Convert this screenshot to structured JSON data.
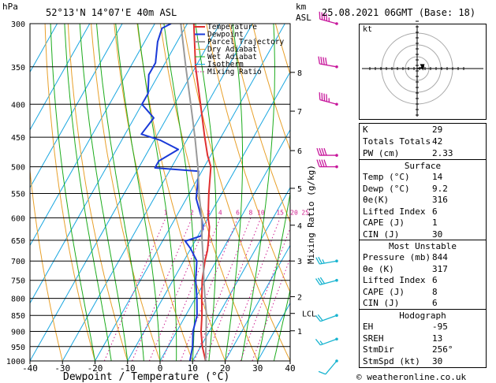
{
  "header": {
    "unit_left": "hPa",
    "location": "52°13'N  14°07'E  40m  ASL",
    "km_label": "km",
    "asl_label": "ASL",
    "datetime": "25.08.2021  06GMT  (Base: 18)",
    "footer": "© weatheronline.co.uk"
  },
  "legend": [
    "Temperature",
    "Dewpoint",
    "Parcel Trajectory",
    "Dry Adiabat",
    "Wet Adiabat",
    "Isotherm",
    "Mixing Ratio"
  ],
  "colors": {
    "temperature": "#e03030",
    "dewpoint": "#1a3ad8",
    "parcel": "#9a9a9a",
    "dry_adiabat": "#e8a02a",
    "wet_adiabat": "#1cac1c",
    "isotherm": "#18a6e0",
    "mixing_ratio": "#d02090",
    "wind_lower": "#18b4d0",
    "wind_upper": "#c8189c"
  },
  "chart_data": {
    "type": "line",
    "title": "",
    "xlabel": "Dewpoint / Temperature (°C)",
    "ylabel_right": "Mixing Ratio (g/kg)",
    "xlim": [
      -40,
      40
    ],
    "ylim": [
      1000,
      300
    ],
    "skew": "skew-T log-p",
    "x_ticks": [
      -40,
      -30,
      -20,
      -10,
      0,
      10,
      20,
      30,
      40
    ],
    "pressure_levels": [
      300,
      350,
      400,
      450,
      500,
      550,
      600,
      650,
      700,
      750,
      800,
      850,
      900,
      950,
      1000
    ],
    "km_ticks": [
      {
        "label": "8",
        "p": 357
      },
      {
        "label": "7",
        "p": 410
      },
      {
        "label": "6",
        "p": 472
      },
      {
        "label": "5",
        "p": 540
      },
      {
        "label": "4",
        "p": 616
      },
      {
        "label": "3",
        "p": 700
      },
      {
        "label": "2",
        "p": 795
      },
      {
        "label": "1",
        "p": 898
      },
      {
        "label": "LCL",
        "p": 844
      }
    ],
    "mixing_ratio_labels": [
      {
        "label": "1",
        "w": 1
      },
      {
        "label": "2",
        "w": 2
      },
      {
        "label": "3",
        "w": 3
      },
      {
        "label": "4",
        "w": 4
      },
      {
        "label": "6",
        "w": 6
      },
      {
        "label": "8",
        "w": 8
      },
      {
        "label": "10",
        "w": 10
      },
      {
        "label": "15",
        "w": 15
      },
      {
        "label": "20",
        "w": 20
      },
      {
        "label": "25",
        "w": 25
      }
    ],
    "series": [
      {
        "name": "Temperature",
        "points": [
          [
            1000,
            14
          ],
          [
            950,
            10.5
          ],
          [
            900,
            7.5
          ],
          [
            850,
            5
          ],
          [
            800,
            2
          ],
          [
            750,
            -1
          ],
          [
            700,
            -3.5
          ],
          [
            675,
            -4.5
          ],
          [
            650,
            -6
          ],
          [
            620,
            -8
          ],
          [
            600,
            -10
          ],
          [
            550,
            -14
          ],
          [
            500,
            -18
          ],
          [
            480,
            -21
          ],
          [
            450,
            -25
          ],
          [
            400,
            -32
          ],
          [
            350,
            -40
          ],
          [
            300,
            -48
          ]
        ]
      },
      {
        "name": "Dewpoint",
        "points": [
          [
            1000,
            9.2
          ],
          [
            950,
            7.5
          ],
          [
            900,
            5
          ],
          [
            850,
            3.5
          ],
          [
            800,
            0.5
          ],
          [
            750,
            -3
          ],
          [
            700,
            -6
          ],
          [
            670,
            -10
          ],
          [
            652,
            -13
          ],
          [
            640,
            -9
          ],
          [
            620,
            -10
          ],
          [
            600,
            -12
          ],
          [
            560,
            -17
          ],
          [
            520,
            -20
          ],
          [
            508,
            -21
          ],
          [
            502,
            -35
          ],
          [
            490,
            -35
          ],
          [
            470,
            -31
          ],
          [
            455,
            -38
          ],
          [
            445,
            -45
          ],
          [
            420,
            -44
          ],
          [
            400,
            -50
          ],
          [
            385,
            -50
          ],
          [
            360,
            -53
          ],
          [
            345,
            -53
          ],
          [
            320,
            -56
          ],
          [
            305,
            -57
          ],
          [
            300,
            -55
          ]
        ]
      },
      {
        "name": "Parcel Trajectory",
        "points": [
          [
            1000,
            14
          ],
          [
            844,
            6
          ],
          [
            800,
            3
          ],
          [
            750,
            -0.5
          ],
          [
            700,
            -4
          ],
          [
            650,
            -8
          ],
          [
            600,
            -12
          ],
          [
            550,
            -17
          ],
          [
            500,
            -22
          ],
          [
            450,
            -28
          ],
          [
            400,
            -35
          ],
          [
            350,
            -43
          ],
          [
            300,
            -52
          ]
        ]
      }
    ],
    "wind_barbs": [
      {
        "p": 300,
        "dir_deg": 285,
        "kt": 45
      },
      {
        "p": 350,
        "dir_deg": 280,
        "kt": 40
      },
      {
        "p": 400,
        "dir_deg": 285,
        "kt": 45
      },
      {
        "p": 480,
        "dir_deg": 270,
        "kt": 40
      },
      {
        "p": 500,
        "dir_deg": 270,
        "kt": 40
      },
      {
        "p": 700,
        "dir_deg": 260,
        "kt": 25
      },
      {
        "p": 750,
        "dir_deg": 255,
        "kt": 30
      },
      {
        "p": 850,
        "dir_deg": 250,
        "kt": 20
      },
      {
        "p": 925,
        "dir_deg": 250,
        "kt": 15
      },
      {
        "p": 1000,
        "dir_deg": 220,
        "kt": 10
      }
    ]
  },
  "hodograph": {
    "unit": "kt",
    "points": [
      [
        0,
        0
      ],
      [
        6,
        1
      ],
      [
        12,
        3
      ],
      [
        14,
        6
      ],
      [
        12,
        -1
      ],
      [
        11,
        1
      ]
    ]
  },
  "indices": {
    "rows": [
      {
        "key": "K",
        "value": "29"
      },
      {
        "key": "Totals Totals",
        "value": "42"
      },
      {
        "key": "PW (cm)",
        "value": "2.33"
      }
    ]
  },
  "surface": {
    "title": "Surface",
    "rows": [
      {
        "key": "Temp (°C)",
        "value": "14"
      },
      {
        "key": "Dewp (°C)",
        "value": "9.2"
      },
      {
        "key": "θe(K)",
        "value": "316"
      },
      {
        "key": "Lifted Index",
        "value": "6"
      },
      {
        "key": "CAPE (J)",
        "value": "1"
      },
      {
        "key": "CIN (J)",
        "value": "30"
      }
    ]
  },
  "most_unstable": {
    "title": "Most Unstable",
    "rows": [
      {
        "key": "Pressure (mb)",
        "value": "844"
      },
      {
        "key": "θe (K)",
        "value": "317"
      },
      {
        "key": "Lifted Index",
        "value": "6"
      },
      {
        "key": "CAPE (J)",
        "value": "8"
      },
      {
        "key": "CIN (J)",
        "value": "6"
      }
    ]
  },
  "hodograph_table": {
    "title": "Hodograph",
    "rows": [
      {
        "key": "EH",
        "value": "-95"
      },
      {
        "key": "SREH",
        "value": "13"
      },
      {
        "key": "StmDir",
        "value": "256°"
      },
      {
        "key": "StmSpd (kt)",
        "value": "30"
      }
    ]
  }
}
